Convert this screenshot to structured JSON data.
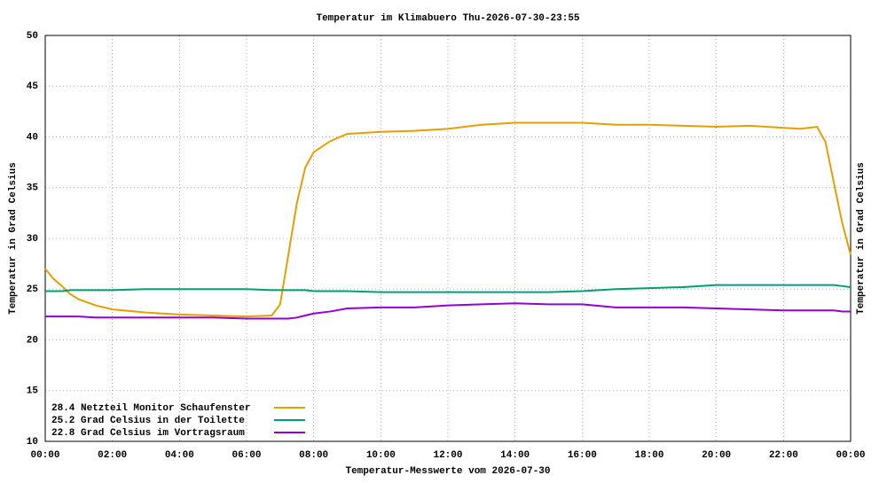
{
  "chart_data": {
    "type": "line",
    "title": "Temperatur im Klimabuero Thu-2026-07-30-23:55",
    "x_label": "Temperatur-Messwerte vom 2026-07-30",
    "y_label": "Temperatur in Grad Celsius",
    "y2_label": "Temperatur in Grad Celsius",
    "x": [
      0,
      0.25,
      0.5,
      0.75,
      1,
      1.5,
      2,
      3,
      4,
      5,
      6,
      6.75,
      7,
      7.25,
      7.5,
      7.75,
      8,
      8.5,
      9,
      10,
      11,
      12,
      13,
      14,
      15,
      16,
      17,
      18,
      19,
      20,
      21,
      22,
      22.5,
      23,
      23.25,
      23.5,
      23.75,
      24
    ],
    "series": [
      {
        "name": "28.4 Netzteil Monitor Schaufenster",
        "color": "#e69f00",
        "values": [
          27.0,
          26.0,
          25.3,
          24.5,
          24.0,
          23.4,
          23.0,
          22.7,
          22.5,
          22.4,
          22.3,
          22.4,
          23.5,
          28.5,
          33.5,
          37.0,
          38.5,
          39.6,
          40.3,
          40.5,
          40.6,
          40.8,
          41.2,
          41.4,
          41.4,
          41.4,
          41.2,
          41.2,
          41.1,
          41.0,
          41.1,
          40.9,
          40.8,
          41.0,
          39.5,
          35.5,
          31.5,
          28.4
        ]
      },
      {
        "name": "25.2 Grad Celsius in der Toilette",
        "color": "#009e73",
        "values": [
          24.8,
          24.8,
          24.8,
          24.9,
          24.9,
          24.9,
          24.9,
          25.0,
          25.0,
          25.0,
          25.0,
          24.9,
          24.9,
          24.9,
          24.9,
          24.9,
          24.8,
          24.8,
          24.8,
          24.7,
          24.7,
          24.7,
          24.7,
          24.7,
          24.7,
          24.8,
          25.0,
          25.1,
          25.2,
          25.4,
          25.4,
          25.4,
          25.4,
          25.4,
          25.4,
          25.4,
          25.3,
          25.2
        ]
      },
      {
        "name": "22.8 Grad Celsius im Vortragsraum",
        "color": "#9400d3",
        "values": [
          22.3,
          22.3,
          22.3,
          22.3,
          22.3,
          22.2,
          22.2,
          22.2,
          22.2,
          22.2,
          22.1,
          22.1,
          22.1,
          22.1,
          22.2,
          22.4,
          22.6,
          22.8,
          23.1,
          23.2,
          23.2,
          23.4,
          23.5,
          23.6,
          23.5,
          23.5,
          23.2,
          23.2,
          23.2,
          23.1,
          23.0,
          22.9,
          22.9,
          22.9,
          22.9,
          22.9,
          22.8,
          22.8
        ]
      }
    ],
    "xlim": [
      0,
      24
    ],
    "xticks": [
      {
        "value": 0,
        "label": "00:00"
      },
      {
        "value": 2,
        "label": "02:00"
      },
      {
        "value": 4,
        "label": "04:00"
      },
      {
        "value": 6,
        "label": "06:00"
      },
      {
        "value": 8,
        "label": "08:00"
      },
      {
        "value": 10,
        "label": "10:00"
      },
      {
        "value": 12,
        "label": "12:00"
      },
      {
        "value": 14,
        "label": "14:00"
      },
      {
        "value": 16,
        "label": "16:00"
      },
      {
        "value": 18,
        "label": "18:00"
      },
      {
        "value": 20,
        "label": "20:00"
      },
      {
        "value": 22,
        "label": "22:00"
      },
      {
        "value": 24,
        "label": "00:00"
      }
    ],
    "ylim": [
      10,
      50
    ],
    "yticks": [
      10,
      15,
      20,
      25,
      30,
      35,
      40,
      45,
      50
    ],
    "grid": true,
    "legend": "bottom-left"
  }
}
